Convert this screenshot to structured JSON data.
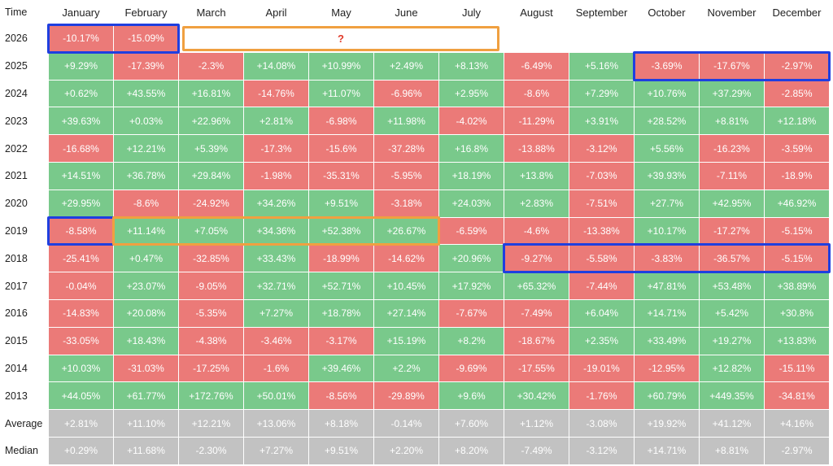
{
  "table": {
    "header": [
      "Time",
      "January",
      "February",
      "March",
      "April",
      "May",
      "June",
      "July",
      "August",
      "September",
      "October",
      "November",
      "December"
    ],
    "years": [
      [
        "2026",
        "-10.17%",
        "-15.09%"
      ],
      [
        "2025",
        "+9.29%",
        "-17.39%",
        "-2.3%",
        "+14.08%",
        "+10.99%",
        "+2.49%",
        "+8.13%",
        "-6.49%",
        "+5.16%",
        "-3.69%",
        "-17.67%",
        "-2.97%"
      ],
      [
        "2024",
        "+0.62%",
        "+43.55%",
        "+16.81%",
        "-14.76%",
        "+11.07%",
        "-6.96%",
        "+2.95%",
        "-8.6%",
        "+7.29%",
        "+10.76%",
        "+37.29%",
        "-2.85%"
      ],
      [
        "2023",
        "+39.63%",
        "+0.03%",
        "+22.96%",
        "+2.81%",
        "-6.98%",
        "+11.98%",
        "-4.02%",
        "-11.29%",
        "+3.91%",
        "+28.52%",
        "+8.81%",
        "+12.18%"
      ],
      [
        "2022",
        "-16.68%",
        "+12.21%",
        "+5.39%",
        "-17.3%",
        "-15.6%",
        "-37.28%",
        "+16.8%",
        "-13.88%",
        "-3.12%",
        "+5.56%",
        "-16.23%",
        "-3.59%"
      ],
      [
        "2021",
        "+14.51%",
        "+36.78%",
        "+29.84%",
        "-1.98%",
        "-35.31%",
        "-5.95%",
        "+18.19%",
        "+13.8%",
        "-7.03%",
        "+39.93%",
        "-7.11%",
        "-18.9%"
      ],
      [
        "2020",
        "+29.95%",
        "-8.6%",
        "-24.92%",
        "+34.26%",
        "+9.51%",
        "-3.18%",
        "+24.03%",
        "+2.83%",
        "-7.51%",
        "+27.7%",
        "+42.95%",
        "+46.92%"
      ],
      [
        "2019",
        "-8.58%",
        "+11.14%",
        "+7.05%",
        "+34.36%",
        "+52.38%",
        "+26.67%",
        "-6.59%",
        "-4.6%",
        "-13.38%",
        "+10.17%",
        "-17.27%",
        "-5.15%"
      ],
      [
        "2018",
        "-25.41%",
        "+0.47%",
        "-32.85%",
        "+33.43%",
        "-18.99%",
        "-14.62%",
        "+20.96%",
        "-9.27%",
        "-5.58%",
        "-3.83%",
        "-36.57%",
        "-5.15%"
      ],
      [
        "2017",
        "-0.04%",
        "+23.07%",
        "-9.05%",
        "+32.71%",
        "+52.71%",
        "+10.45%",
        "+17.92%",
        "+65.32%",
        "-7.44%",
        "+47.81%",
        "+53.48%",
        "+38.89%"
      ],
      [
        "2016",
        "-14.83%",
        "+20.08%",
        "-5.35%",
        "+7.27%",
        "+18.78%",
        "+27.14%",
        "-7.67%",
        "-7.49%",
        "+6.04%",
        "+14.71%",
        "+5.42%",
        "+30.8%"
      ],
      [
        "2015",
        "-33.05%",
        "+18.43%",
        "-4.38%",
        "-3.46%",
        "-3.17%",
        "+15.19%",
        "+8.2%",
        "-18.67%",
        "+2.35%",
        "+33.49%",
        "+19.27%",
        "+13.83%"
      ],
      [
        "2014",
        "+10.03%",
        "-31.03%",
        "-17.25%",
        "-1.6%",
        "+39.46%",
        "+2.2%",
        "-9.69%",
        "-17.55%",
        "-19.01%",
        "-12.95%",
        "+12.82%",
        "-15.11%"
      ],
      [
        "2013",
        "+44.05%",
        "+61.77%",
        "+172.76%",
        "+50.01%",
        "-8.56%",
        "-29.89%",
        "+9.6%",
        "+30.42%",
        "-1.76%",
        "+60.79%",
        "+449.35%",
        "-34.81%"
      ]
    ],
    "summary": [
      [
        "Average",
        "+2.81%",
        "+11.10%",
        "+12.21%",
        "+13.06%",
        "+8.18%",
        "-0.14%",
        "+7.60%",
        "+1.12%",
        "-3.08%",
        "+19.92%",
        "+41.12%",
        "+4.16%"
      ],
      [
        "Median",
        "+0.29%",
        "+11.68%",
        "-2.30%",
        "+7.27%",
        "+9.51%",
        "+2.20%",
        "+8.20%",
        "-7.49%",
        "-3.12%",
        "+14.71%",
        "+8.81%",
        "-2.97%"
      ]
    ],
    "pending": "?"
  }
}
